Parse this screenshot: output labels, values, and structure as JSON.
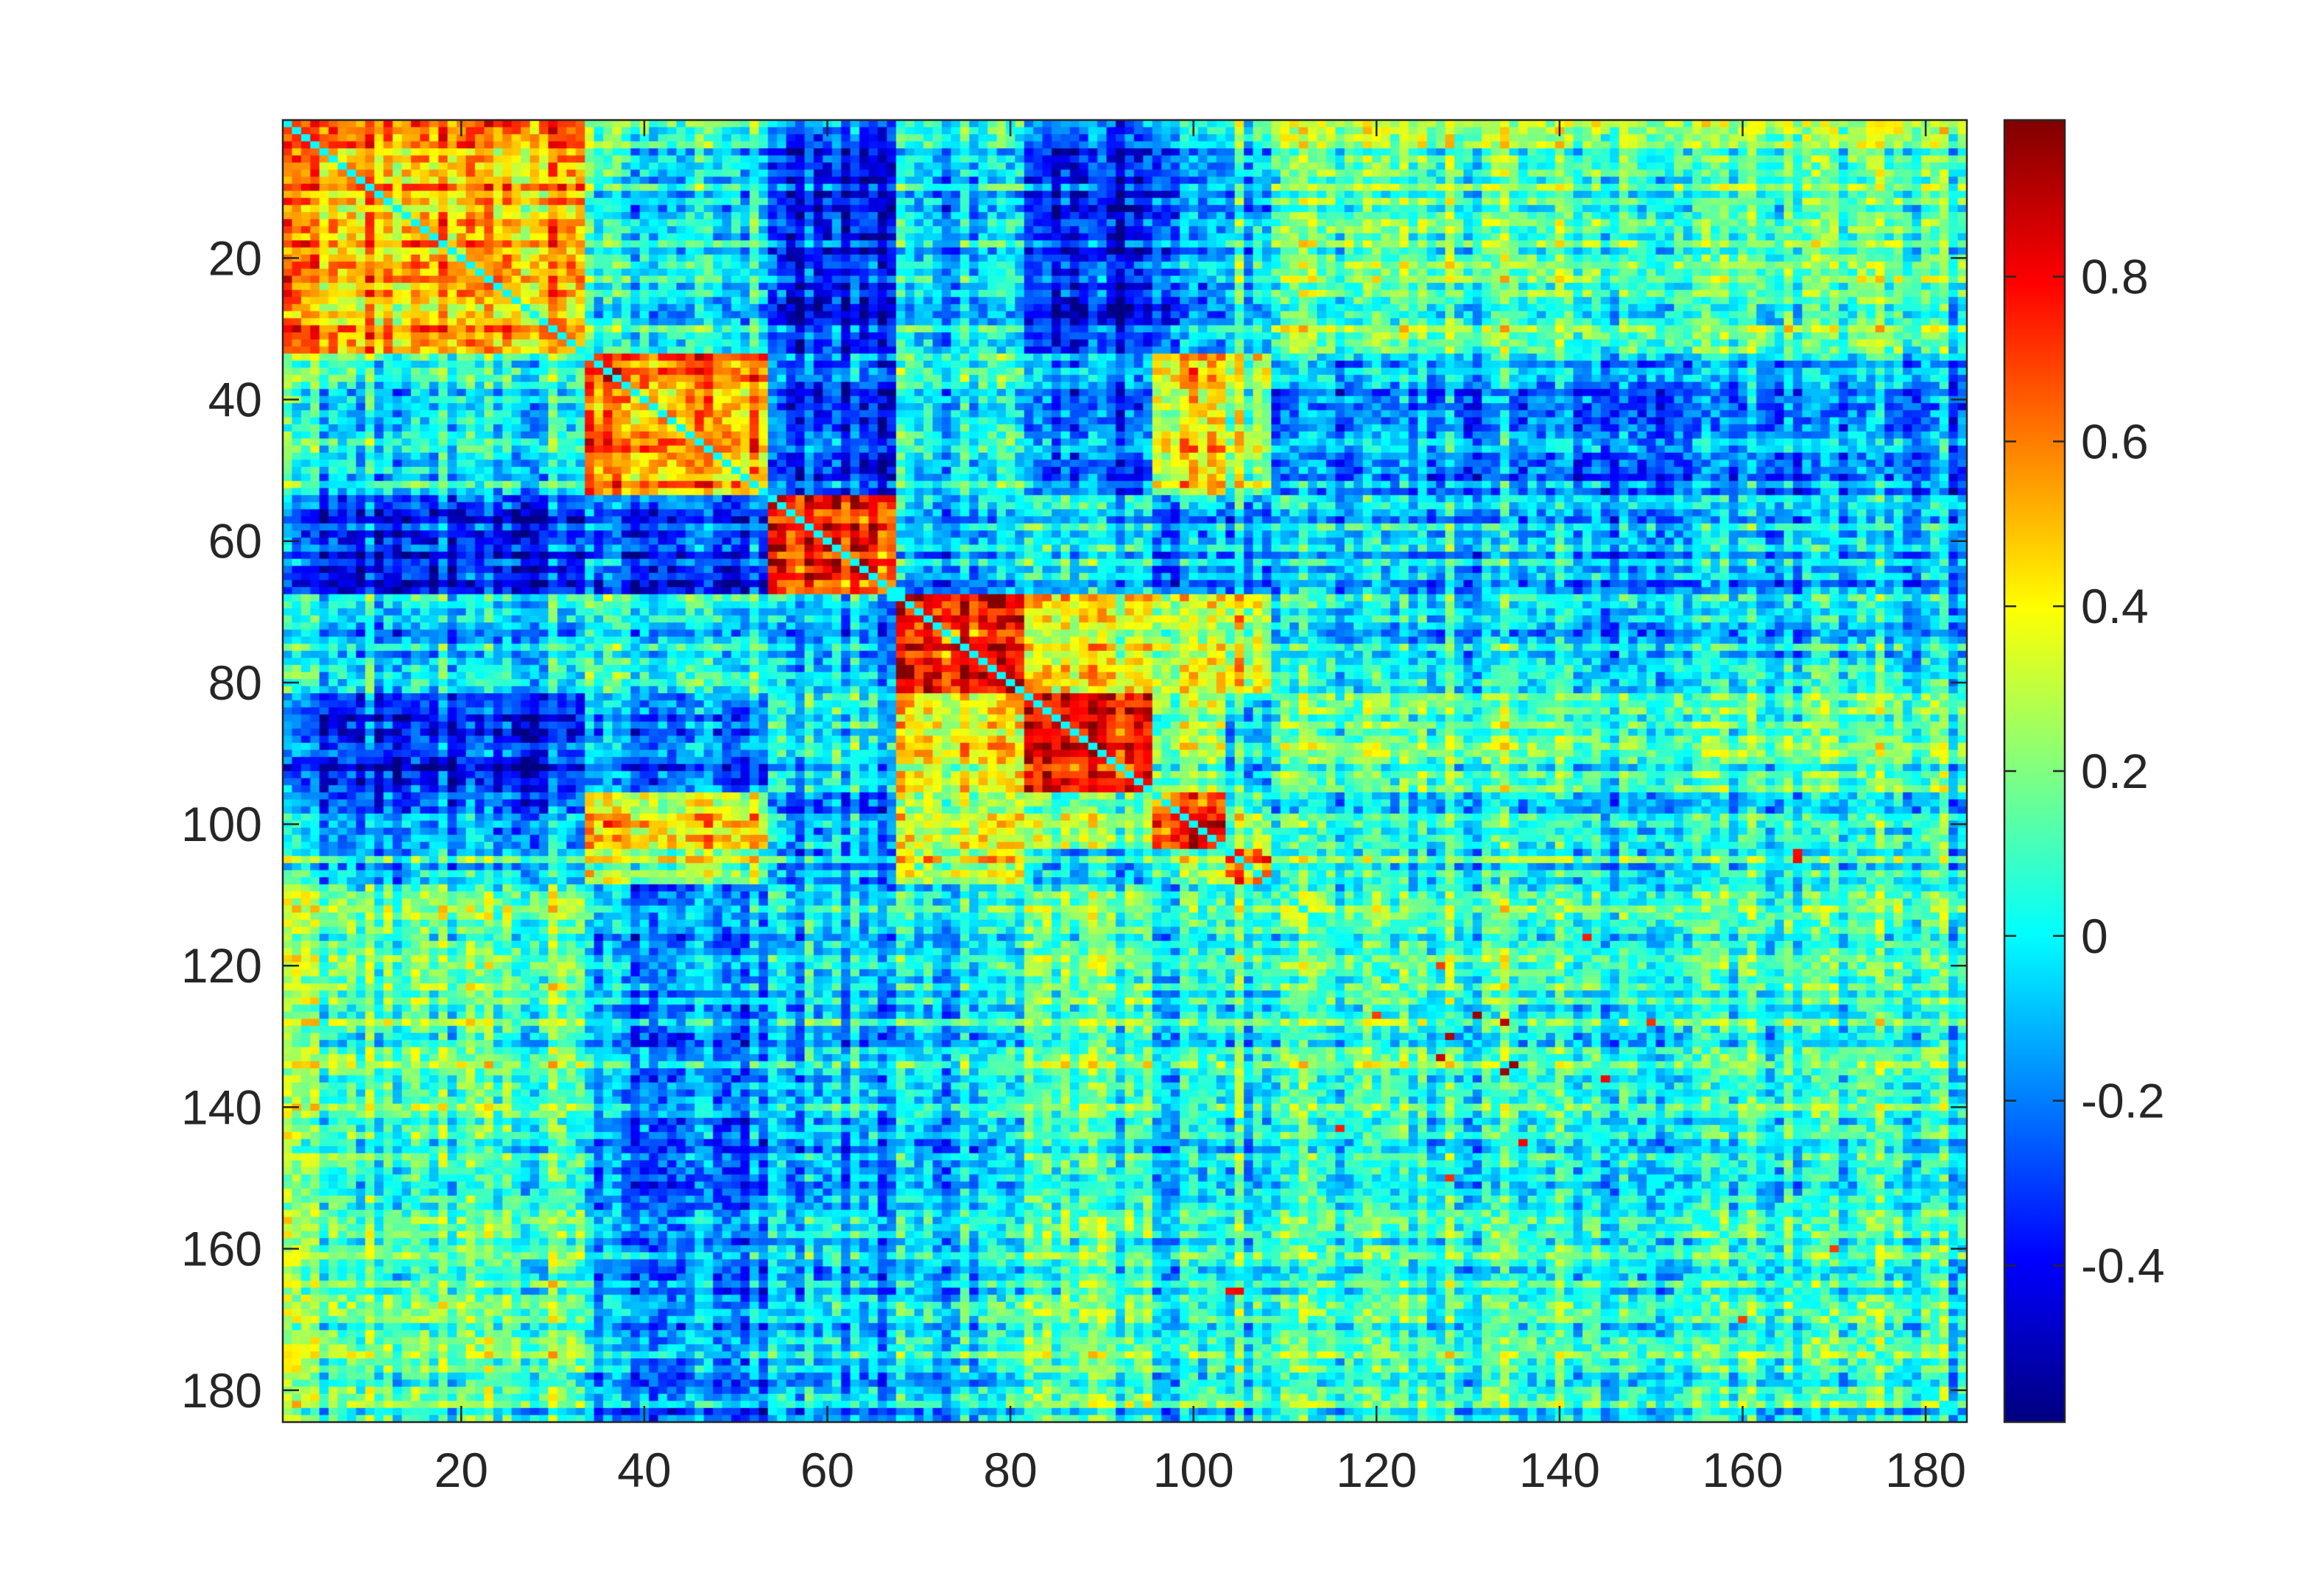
{
  "chart_data": {
    "type": "heatmap",
    "title": "",
    "xlabel": "",
    "ylabel": "",
    "size": 184,
    "xlim": [
      0.5,
      184.5
    ],
    "ylim": [
      0.5,
      184.5
    ],
    "y_direction": "reversed",
    "x_ticks": [
      20,
      40,
      60,
      80,
      100,
      120,
      140,
      160,
      180
    ],
    "y_ticks": [
      20,
      40,
      60,
      80,
      100,
      120,
      140,
      160,
      180
    ],
    "x_tick_labels": [
      "20",
      "40",
      "60",
      "80",
      "100",
      "120",
      "140",
      "160",
      "180"
    ],
    "y_tick_labels": [
      "20",
      "40",
      "60",
      "80",
      "100",
      "120",
      "140",
      "160",
      "180"
    ],
    "colormap": "jet",
    "clim": [
      -0.59,
      0.99
    ],
    "colorbar": {
      "ticks": [
        0.8,
        0.6,
        0.4,
        0.2,
        0,
        -0.2,
        -0.4
      ],
      "tick_labels": [
        "0.8",
        "0.6",
        "0.4",
        "0.2",
        "0",
        "-0.2",
        "-0.4"
      ]
    },
    "diagonal_value": 0.0,
    "module_boundaries": [
      1,
      34,
      54,
      68,
      82,
      96,
      104,
      109,
      185
    ],
    "block_mean_matrix": [
      [
        0.55,
        0.05,
        -0.35,
        -0.05,
        -0.35,
        -0.15,
        0.0,
        0.15
      ],
      [
        0.05,
        0.62,
        -0.28,
        0.05,
        -0.2,
        0.45,
        0.3,
        -0.15
      ],
      [
        -0.35,
        -0.28,
        0.72,
        -0.12,
        -0.05,
        -0.15,
        -0.15,
        -0.1
      ],
      [
        -0.05,
        0.05,
        -0.12,
        0.78,
        0.35,
        0.3,
        0.35,
        -0.05
      ],
      [
        -0.35,
        -0.2,
        -0.05,
        0.35,
        0.72,
        0.2,
        -0.05,
        0.1
      ],
      [
        -0.15,
        0.45,
        -0.15,
        0.3,
        0.2,
        0.7,
        0.2,
        0.0
      ],
      [
        0.0,
        0.3,
        -0.15,
        0.35,
        -0.05,
        0.2,
        0.6,
        0.05
      ],
      [
        0.15,
        -0.15,
        -0.1,
        -0.05,
        0.1,
        0.0,
        0.05,
        0.05
      ]
    ],
    "noise_amplitude": 0.17,
    "strong_cells": [
      [
        127,
        131,
        0.95
      ],
      [
        130,
        128,
        0.92
      ],
      [
        134,
        135,
        0.96
      ],
      [
        135,
        134,
        0.94
      ],
      [
        128,
        134,
        0.9
      ],
      [
        133,
        127,
        0.88
      ],
      [
        136,
        145,
        0.8
      ],
      [
        145,
        136,
        0.8
      ],
      [
        116,
        143,
        0.75
      ],
      [
        143,
        116,
        0.75
      ],
      [
        166,
        105,
        0.8
      ],
      [
        105,
        166,
        0.8
      ],
      [
        104,
        166,
        0.78
      ],
      [
        166,
        104,
        0.78
      ],
      [
        120,
        127,
        0.7
      ],
      [
        127,
        120,
        0.7
      ],
      [
        150,
        128,
        0.72
      ],
      [
        128,
        150,
        0.72
      ],
      [
        160,
        170,
        0.7
      ],
      [
        170,
        160,
        0.7
      ]
    ]
  }
}
